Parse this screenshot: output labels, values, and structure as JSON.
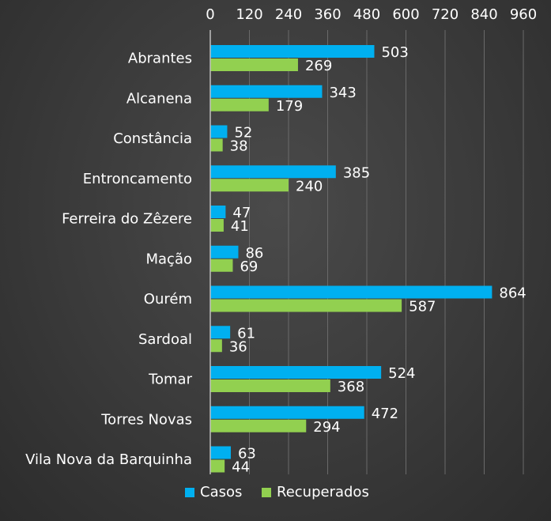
{
  "chart_data": {
    "type": "bar",
    "orientation": "horizontal",
    "categories": [
      "Abrantes",
      "Alcanena",
      "Constância",
      "Entroncamento",
      "Ferreira do Zêzere",
      "Mação",
      "Ourém",
      "Sardoal",
      "Tomar",
      "Torres Novas",
      "Vila Nova da Barquinha"
    ],
    "series": [
      {
        "name": "Casos",
        "color": "#00b0f0",
        "values": [
          503,
          343,
          52,
          385,
          47,
          86,
          864,
          61,
          524,
          472,
          63
        ]
      },
      {
        "name": "Recuperados",
        "color": "#92d050",
        "values": [
          269,
          179,
          38,
          240,
          41,
          69,
          587,
          36,
          368,
          294,
          44
        ]
      }
    ],
    "xlim": [
      0,
      960
    ],
    "xticks": [
      "0",
      "120",
      "240",
      "360",
      "480",
      "600",
      "720",
      "840",
      "960"
    ],
    "xaxis_position": "top",
    "grid": true,
    "legend_position": "bottom",
    "title": "",
    "xlabel": "",
    "ylabel": ""
  }
}
